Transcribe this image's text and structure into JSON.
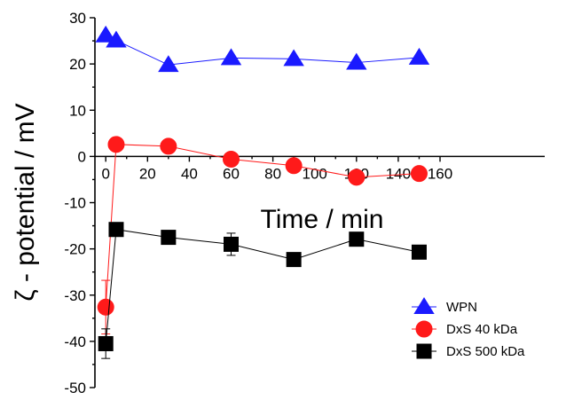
{
  "chart_data": {
    "type": "line",
    "xlabel": "Time / min",
    "ylabel": "ζ - potential / mV",
    "xlim": [
      -5,
      160
    ],
    "ylim": [
      -50,
      30
    ],
    "xticks": [
      0,
      20,
      40,
      60,
      80,
      100,
      120,
      140,
      160
    ],
    "xtick_labels": [
      "0",
      "20",
      "40",
      "60",
      "80",
      "100",
      "120",
      "140",
      "160"
    ],
    "yticks": [
      -50,
      -40,
      -30,
      -20,
      -10,
      0,
      10,
      20,
      30
    ],
    "ytick_labels": [
      "-50",
      "-40",
      "-30",
      "-20",
      "-10",
      "0",
      "10",
      "20",
      "30"
    ],
    "x_axis_at_y": 0,
    "grid": false,
    "legend_position": "bottom-right",
    "series": [
      {
        "name": "WPN",
        "marker": "triangle",
        "color": "#1a1aff",
        "x": [
          0,
          5,
          30,
          60,
          90,
          120,
          150
        ],
        "y": [
          26.2,
          25.1,
          19.8,
          21.3,
          21.1,
          20.3,
          21.4
        ],
        "err": [
          0,
          0,
          0,
          0,
          0,
          0,
          0
        ]
      },
      {
        "name": "DxS 40 kDa",
        "marker": "circle",
        "color": "#ff1a1a",
        "x": [
          0,
          5,
          30,
          60,
          90,
          120,
          150
        ],
        "y": [
          -32.6,
          2.6,
          2.2,
          -0.6,
          -2.0,
          -4.5,
          -3.7
        ],
        "err": [
          5.8,
          0,
          0,
          0,
          0,
          0,
          0
        ]
      },
      {
        "name": "DxS 500 kDa",
        "marker": "square",
        "color": "#000000",
        "x": [
          0,
          5,
          30,
          60,
          90,
          120,
          150
        ],
        "y": [
          -40.5,
          -15.8,
          -17.5,
          -19.0,
          -22.3,
          -17.9,
          -20.7
        ],
        "err": [
          3.2,
          0,
          0,
          2.4,
          0,
          1.3,
          0
        ]
      }
    ]
  }
}
